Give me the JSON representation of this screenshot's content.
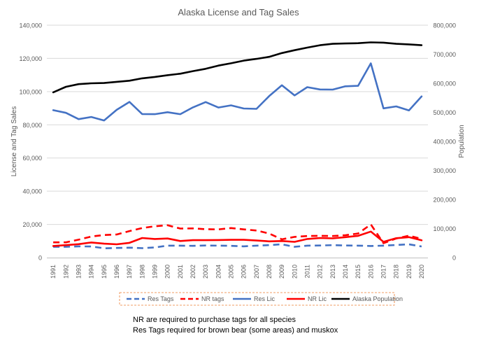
{
  "chart_data": {
    "type": "line",
    "title": "Alaska License and Tag Sales",
    "ylabel_left": "License and Tag Sales",
    "ylabel_right": "Population",
    "ylim_left": [
      0,
      140000
    ],
    "ylim_right": [
      0,
      800000
    ],
    "yticks_left": [
      "0",
      "20,000",
      "40,000",
      "60,000",
      "80,000",
      "100,000",
      "120,000",
      "140,000"
    ],
    "yticks_right": [
      "0",
      "100,000",
      "200,000",
      "300,000",
      "400,000",
      "500,000",
      "600,000",
      "700,000",
      "800,000"
    ],
    "grid": true,
    "legend_position": "bottom",
    "x": [
      "1991",
      "1992",
      "1993",
      "1994",
      "1995",
      "1996",
      "1997",
      "1998",
      "1999",
      "2000",
      "2001",
      "2002",
      "2003",
      "2004",
      "2005",
      "2006",
      "2007",
      "2008",
      "2009",
      "2010",
      "2011",
      "2012",
      "2013",
      "2014",
      "2015",
      "2016",
      "2017",
      "2018",
      "2019",
      "2020"
    ],
    "series": [
      {
        "name": "Res Tags",
        "axis": "left",
        "color": "#4472C4",
        "dash": true,
        "values": [
          6500,
          6500,
          6800,
          6700,
          5600,
          5800,
          6000,
          5700,
          6100,
          7200,
          7200,
          7100,
          7300,
          7200,
          7100,
          6800,
          7200,
          7500,
          8000,
          6500,
          7200,
          7300,
          7500,
          7300,
          7200,
          7000,
          7200,
          7600,
          8000,
          6700
        ]
      },
      {
        "name": "NR tags",
        "axis": "left",
        "color": "#FF0000",
        "dash": true,
        "values": [
          9200,
          9200,
          10800,
          12700,
          13600,
          13900,
          16000,
          17800,
          18900,
          19500,
          17500,
          17600,
          17100,
          17000,
          17800,
          17000,
          16300,
          14500,
          11000,
          12500,
          13000,
          13100,
          13000,
          13500,
          14500,
          20000,
          8700,
          11500,
          13200,
          11300
        ]
      },
      {
        "name": "Res Lic",
        "axis": "left",
        "color": "#4472C4",
        "dash": false,
        "values": [
          88800,
          87200,
          83400,
          84700,
          82600,
          89000,
          93800,
          86500,
          86400,
          87600,
          86400,
          90500,
          93700,
          90400,
          91700,
          89800,
          89600,
          97300,
          103800,
          97700,
          102700,
          101300,
          101200,
          103200,
          103500,
          117000,
          89900,
          91100,
          88700,
          97100
        ]
      },
      {
        "name": "NR Lic",
        "axis": "left",
        "color": "#FF0000",
        "dash": false,
        "values": [
          7000,
          7500,
          8100,
          9100,
          8400,
          8000,
          8900,
          11800,
          11200,
          11500,
          10000,
          10500,
          10500,
          10600,
          10700,
          10700,
          10300,
          9800,
          10000,
          9500,
          11200,
          11800,
          11600,
          12300,
          13100,
          15700,
          9500,
          11700,
          12300,
          10400
        ]
      },
      {
        "name": "Alaska Population",
        "axis": "right",
        "color": "#000000",
        "dash": false,
        "values": [
          569000,
          588000,
          597000,
          600000,
          601000,
          605000,
          609000,
          617000,
          622000,
          628000,
          633000,
          642000,
          650000,
          661000,
          669000,
          678000,
          684000,
          691000,
          704000,
          714000,
          723000,
          731000,
          736000,
          737000,
          738000,
          741000,
          740000,
          736000,
          734000,
          731000
        ]
      }
    ],
    "notes": [
      "NR are required to purchase tags for all species",
      "Res Tags required for brown bear (some areas) and muskox"
    ]
  }
}
